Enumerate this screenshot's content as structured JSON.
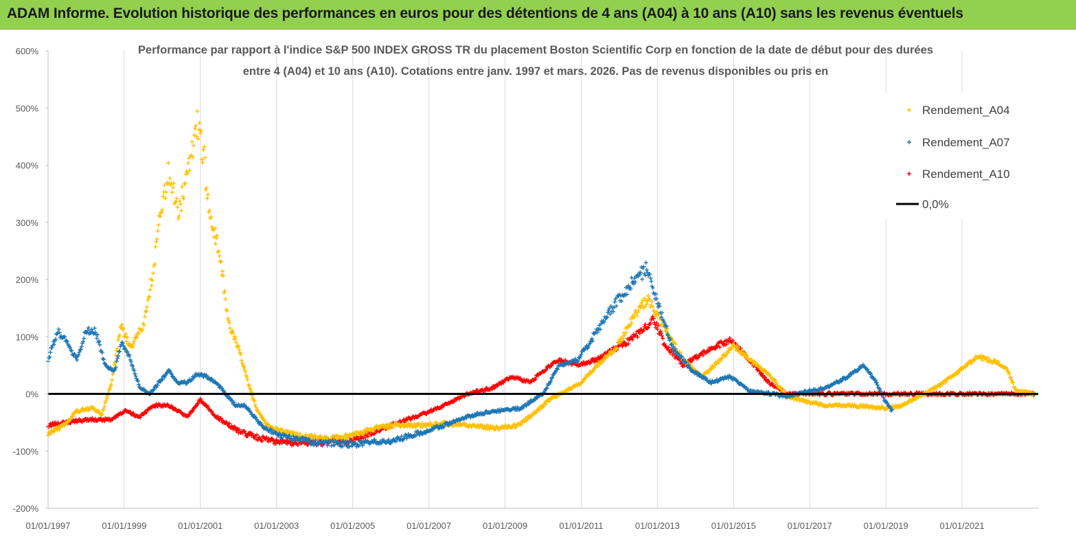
{
  "banner": {
    "title": "ADAM Informe. Evolution historique des performances en euros pour des détentions de 4 ans (A04) à 10 ans (A10) sans les revenus éventuels",
    "background": "#92d050"
  },
  "chart_data": {
    "type": "scatter",
    "title_line1": "Performance par rapport à l'indice S&P 500 INDEX GROSS TR  du placement Boston Scientific Corp en fonction de la date de début pour des durées",
    "title_line2": "entre 4 (A04) et 10 ans (A10). Cotations entre janv. 1997 et mars. 2026. Pas de  revenus disponibles ou pris en",
    "xlabel": "",
    "ylabel": "",
    "x_range": [
      "1997-01-01",
      "2023-01-01"
    ],
    "x_ticks": [
      "01/01/1997",
      "01/01/1999",
      "01/01/2001",
      "01/01/2003",
      "01/01/2005",
      "01/01/2007",
      "01/01/2009",
      "01/01/2011",
      "01/01/2013",
      "01/01/2015",
      "01/01/2017",
      "01/01/2019",
      "01/01/2021"
    ],
    "ylim": [
      -200,
      600
    ],
    "y_ticks": [
      "600%",
      "500%",
      "400%",
      "300%",
      "200%",
      "100%",
      "0%",
      "-100%",
      "-200%"
    ],
    "grid": "vertical",
    "legend_position": "top-right",
    "reference_line": {
      "name": "0,0%",
      "value": 0,
      "color": "#000000"
    },
    "series": [
      {
        "name": "Rendement_A04",
        "color": "#ffc000",
        "points": [
          [
            "1997-01",
            -70
          ],
          [
            "1997-06",
            -55
          ],
          [
            "1997-10",
            -30
          ],
          [
            "1998-03",
            -25
          ],
          [
            "1998-06",
            -35
          ],
          [
            "1998-09",
            20
          ],
          [
            "1998-12",
            120
          ],
          [
            "1999-03",
            80
          ],
          [
            "1999-07",
            120
          ],
          [
            "1999-10",
            210
          ],
          [
            "1999-12",
            300
          ],
          [
            "2000-03",
            390
          ],
          [
            "2000-06",
            320
          ],
          [
            "2000-09",
            380
          ],
          [
            "2000-12",
            470
          ],
          [
            "2001-02",
            420
          ],
          [
            "2001-04",
            300
          ],
          [
            "2001-07",
            250
          ],
          [
            "2001-10",
            120
          ],
          [
            "2002-01",
            80
          ],
          [
            "2002-04",
            20
          ],
          [
            "2002-07",
            -30
          ],
          [
            "2002-10",
            -55
          ],
          [
            "2003-03",
            -65
          ],
          [
            "2003-09",
            -75
          ],
          [
            "2004-06",
            -78
          ],
          [
            "2005-01",
            -72
          ],
          [
            "2005-08",
            -60
          ],
          [
            "2006-03",
            -55
          ],
          [
            "2006-10",
            -55
          ],
          [
            "2007-06",
            -52
          ],
          [
            "2008-02",
            -55
          ],
          [
            "2008-10",
            -60
          ],
          [
            "2009-05",
            -55
          ],
          [
            "2009-10",
            -35
          ],
          [
            "2010-03",
            -10
          ],
          [
            "2010-08",
            5
          ],
          [
            "2011-01",
            20
          ],
          [
            "2011-06",
            50
          ],
          [
            "2011-12",
            80
          ],
          [
            "2012-06",
            140
          ],
          [
            "2012-10",
            165
          ],
          [
            "2013-03",
            120
          ],
          [
            "2013-09",
            60
          ],
          [
            "2014-03",
            30
          ],
          [
            "2014-09",
            60
          ],
          [
            "2015-01",
            85
          ],
          [
            "2015-06",
            60
          ],
          [
            "2015-12",
            35
          ],
          [
            "2016-06",
            -5
          ],
          [
            "2017-01",
            -15
          ],
          [
            "2017-06",
            -20
          ],
          [
            "2018-01",
            -20
          ],
          [
            "2018-06",
            -22
          ],
          [
            "2019-01",
            -25
          ],
          [
            "2019-06",
            -20
          ],
          [
            "2020-01",
            0
          ],
          [
            "2020-06",
            15
          ],
          [
            "2020-12",
            40
          ],
          [
            "2021-06",
            65
          ],
          [
            "2021-12",
            55
          ],
          [
            "2022-03",
            45
          ],
          [
            "2022-06",
            5
          ],
          [
            "2022-12",
            0
          ]
        ]
      },
      {
        "name": "Rendement_A07",
        "color": "#1f77b4",
        "points": [
          [
            "1997-01",
            60
          ],
          [
            "1997-04",
            110
          ],
          [
            "1997-07",
            90
          ],
          [
            "1997-10",
            60
          ],
          [
            "1998-01",
            110
          ],
          [
            "1998-04",
            110
          ],
          [
            "1998-07",
            50
          ],
          [
            "1998-10",
            40
          ],
          [
            "1998-12",
            90
          ],
          [
            "1999-03",
            60
          ],
          [
            "1999-06",
            10
          ],
          [
            "1999-09",
            0
          ],
          [
            "1999-12",
            20
          ],
          [
            "2000-03",
            40
          ],
          [
            "2000-06",
            20
          ],
          [
            "2000-09",
            20
          ],
          [
            "2000-12",
            35
          ],
          [
            "2001-03",
            30
          ],
          [
            "2001-06",
            20
          ],
          [
            "2001-09",
            0
          ],
          [
            "2001-12",
            -20
          ],
          [
            "2002-03",
            -20
          ],
          [
            "2002-06",
            -40
          ],
          [
            "2002-09",
            -60
          ],
          [
            "2003-03",
            -75
          ],
          [
            "2004-01",
            -85
          ],
          [
            "2005-01",
            -88
          ],
          [
            "2006-01",
            -82
          ],
          [
            "2006-09",
            -70
          ],
          [
            "2007-06",
            -55
          ],
          [
            "2008-01",
            -40
          ],
          [
            "2008-09",
            -30
          ],
          [
            "2009-06",
            -25
          ],
          [
            "2010-01",
            0
          ],
          [
            "2010-06",
            50
          ],
          [
            "2010-12",
            60
          ],
          [
            "2011-06",
            110
          ],
          [
            "2011-12",
            160
          ],
          [
            "2012-06",
            200
          ],
          [
            "2012-10",
            220
          ],
          [
            "2013-01",
            160
          ],
          [
            "2013-06",
            80
          ],
          [
            "2013-12",
            40
          ],
          [
            "2014-06",
            20
          ],
          [
            "2014-12",
            30
          ],
          [
            "2015-06",
            5
          ],
          [
            "2016-01",
            0
          ],
          [
            "2016-06",
            -5
          ],
          [
            "2017-01",
            5
          ],
          [
            "2017-06",
            10
          ],
          [
            "2018-01",
            30
          ],
          [
            "2018-06",
            50
          ],
          [
            "2018-10",
            20
          ],
          [
            "2019-01",
            -15
          ],
          [
            "2019-03",
            -30
          ]
        ]
      },
      {
        "name": "Rendement_A10",
        "color": "#ff0000",
        "points": [
          [
            "1997-01",
            -55
          ],
          [
            "1997-06",
            -50
          ],
          [
            "1998-01",
            -45
          ],
          [
            "1998-09",
            -45
          ],
          [
            "1999-01",
            -30
          ],
          [
            "1999-06",
            -40
          ],
          [
            "1999-10",
            -20
          ],
          [
            "2000-03",
            -20
          ],
          [
            "2000-09",
            -40
          ],
          [
            "2001-01",
            -10
          ],
          [
            "2001-06",
            -40
          ],
          [
            "2002-01",
            -65
          ],
          [
            "2002-06",
            -75
          ],
          [
            "2003-01",
            -85
          ],
          [
            "2004-01",
            -85
          ],
          [
            "2005-01",
            -82
          ],
          [
            "2005-06",
            -70
          ],
          [
            "2006-01",
            -55
          ],
          [
            "2006-09",
            -40
          ],
          [
            "2007-06",
            -20
          ],
          [
            "2008-01",
            0
          ],
          [
            "2008-09",
            10
          ],
          [
            "2009-03",
            30
          ],
          [
            "2009-09",
            20
          ],
          [
            "2010-01",
            40
          ],
          [
            "2010-06",
            60
          ],
          [
            "2010-12",
            50
          ],
          [
            "2011-06",
            60
          ],
          [
            "2011-12",
            80
          ],
          [
            "2012-06",
            100
          ],
          [
            "2012-12",
            130
          ],
          [
            "2013-03",
            90
          ],
          [
            "2013-09",
            50
          ],
          [
            "2014-06",
            80
          ],
          [
            "2014-12",
            95
          ],
          [
            "2015-06",
            60
          ],
          [
            "2015-12",
            20
          ],
          [
            "2016-06",
            0
          ],
          [
            "2022-12",
            0
          ]
        ]
      }
    ]
  }
}
